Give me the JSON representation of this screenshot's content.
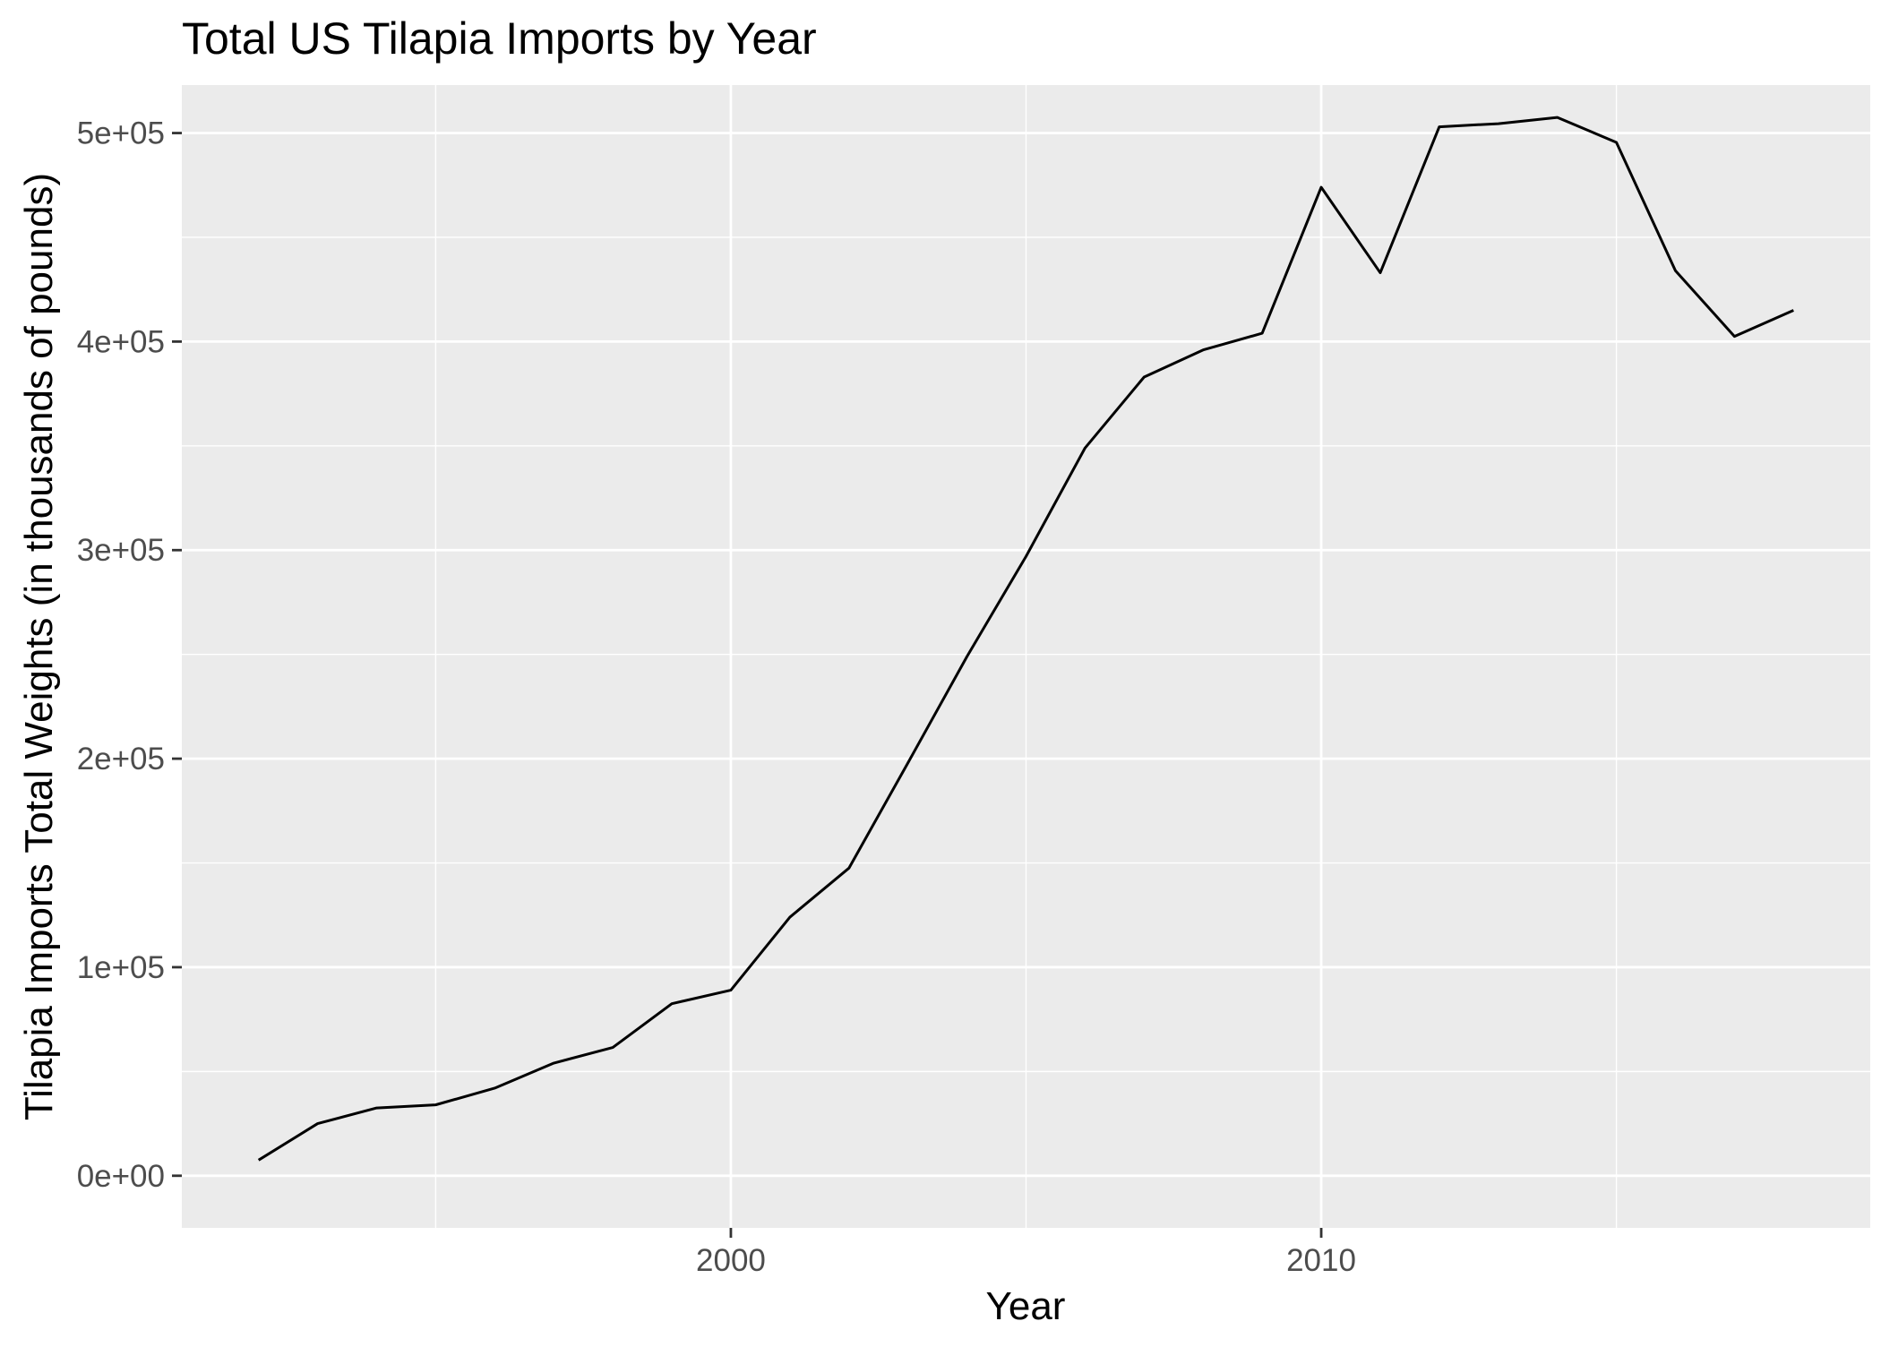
{
  "chart_data": {
    "type": "line",
    "title": "Total US Tilapia Imports by Year",
    "xlabel": "Year",
    "ylabel": "Tilapia Imports Total Weights (in thousands of pounds)",
    "xlim": [
      1990.7,
      2019.3
    ],
    "ylim": [
      -25000,
      523000
    ],
    "x_ticks": [
      2000,
      2010
    ],
    "x_tick_labels": [
      "2000",
      "2010"
    ],
    "x_minor_ticks": [
      1995,
      2005,
      2015
    ],
    "y_ticks": [
      0,
      100000,
      200000,
      300000,
      400000,
      500000
    ],
    "y_tick_labels": [
      "0e+00",
      "1e+05",
      "2e+05",
      "3e+05",
      "4e+05",
      "5e+05"
    ],
    "y_minor_ticks": [
      50000,
      150000,
      250000,
      350000,
      450000
    ],
    "grid": true,
    "legend": "none",
    "colors": {
      "panel_background": "#ebebeb",
      "grid_major": "#ffffff",
      "grid_minor": "#ffffff",
      "line": "#000000",
      "tick_label": "#4d4d4d",
      "axis_title": "#000000",
      "title": "#000000"
    },
    "series": [
      {
        "x": [
          1992,
          1993,
          1994,
          1995,
          1996,
          1997,
          1998,
          1999,
          2000,
          2001,
          2002,
          2003,
          2004,
          2005,
          2006,
          2007,
          2008,
          2009,
          2010,
          2011,
          2012,
          2013,
          2014,
          2015,
          2016,
          2017,
          2018
        ],
        "values": [
          7500,
          25000,
          32500,
          34000,
          42000,
          54000,
          61500,
          82500,
          89000,
          124000,
          147500,
          198000,
          249000,
          297000,
          349000,
          383000,
          396000,
          404000,
          474000,
          433000,
          503000,
          504500,
          507500,
          495500,
          434000,
          402500,
          415000
        ]
      }
    ]
  }
}
